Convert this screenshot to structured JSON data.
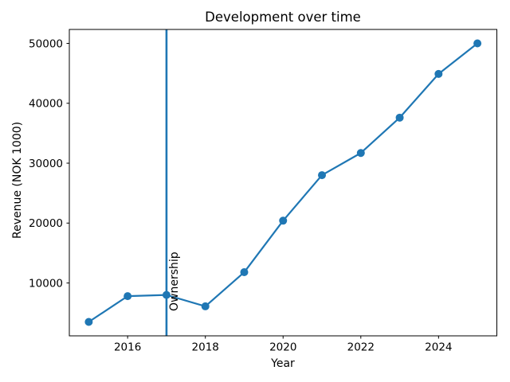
{
  "chart": {
    "background_color": "#ffffff",
    "text_color": "#000000",
    "spine_color": "#000000"
  },
  "chart_data": {
    "type": "line",
    "title": "Development over time",
    "xlabel": "Year",
    "ylabel": "Revenue (NOK 1000)",
    "x": [
      2015,
      2016,
      2017,
      2018,
      2019,
      2020,
      2021,
      2022,
      2023,
      2024,
      2025
    ],
    "series": [
      {
        "name": "Revenue",
        "values": [
          3500,
          7800,
          8000,
          6100,
          11800,
          20400,
          28000,
          31700,
          37600,
          44900,
          50000
        ],
        "color": "#1f77b4",
        "marker": "o"
      }
    ],
    "xticks": [
      2016,
      2018,
      2020,
      2022,
      2024
    ],
    "yticks": [
      10000,
      20000,
      30000,
      40000,
      50000
    ],
    "xlim": [
      2014.5,
      2025.5
    ],
    "ylim": [
      1175,
      52325
    ],
    "grid": false,
    "legend": null,
    "vline": {
      "x": 2017,
      "label": "Ownership",
      "color": "#1f77b4"
    }
  }
}
